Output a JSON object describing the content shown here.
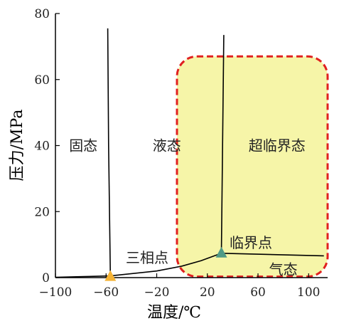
{
  "chart_data": {
    "type": "line",
    "xlabel": "温度/℃",
    "ylabel": "压力/MPa",
    "xlim": [
      -100,
      115
    ],
    "ylim": [
      0,
      80
    ],
    "x_ticks": [
      -100,
      -60,
      -20,
      20,
      60,
      100
    ],
    "x_tick_labels": [
      "−100",
      "−60",
      "−20",
      "20",
      "60",
      "100"
    ],
    "y_ticks": [
      0,
      20,
      40,
      60,
      80
    ],
    "y_tick_labels": [
      "0",
      "20",
      "40",
      "60",
      "80"
    ],
    "series": [
      {
        "id": "sublimation",
        "x": [
          -100,
          -78,
          -56.6
        ],
        "y": [
          0.1,
          0.3,
          0.52
        ]
      },
      {
        "id": "melting",
        "x": [
          -56.6,
          -58,
          -58.7
        ],
        "y": [
          0.52,
          40,
          75.5
        ]
      },
      {
        "id": "vaporization",
        "x": [
          -56.6,
          -20,
          0,
          15,
          31.1
        ],
        "y": [
          0.52,
          2.0,
          3.5,
          5.1,
          7.38
        ]
      },
      {
        "id": "critical-isochore",
        "x": [
          31.1,
          33
        ],
        "y": [
          7.38,
          73.5
        ]
      },
      {
        "id": "critical-isobar",
        "x": [
          31.1,
          112
        ],
        "y": [
          7.38,
          6.6
        ]
      }
    ],
    "regions": [
      {
        "id": "solid",
        "label": "固态",
        "x": -78,
        "y": 40
      },
      {
        "id": "liquid",
        "label": "液态",
        "x": -12,
        "y": 40
      },
      {
        "id": "supercritical",
        "label": "超临界态",
        "x": 75,
        "y": 40
      },
      {
        "id": "gas",
        "label": "气态",
        "x": 80,
        "y": 2.5
      }
    ],
    "points": [
      {
        "id": "triple-point",
        "label": "三相点",
        "x": -56.6,
        "y": 0.52,
        "color": "#f5b335"
      },
      {
        "id": "critical-point",
        "label": "临界点",
        "x": 31.1,
        "y": 7.38,
        "color": "#4f9a86"
      }
    ],
    "highlight": {
      "x": [
        -4,
        115
      ],
      "y": [
        0.3,
        67
      ],
      "fill": "#f6f5a8",
      "stroke": "#e02020"
    },
    "colors": {
      "axis": "#000000",
      "line": "#000000",
      "text": "#222222"
    }
  }
}
